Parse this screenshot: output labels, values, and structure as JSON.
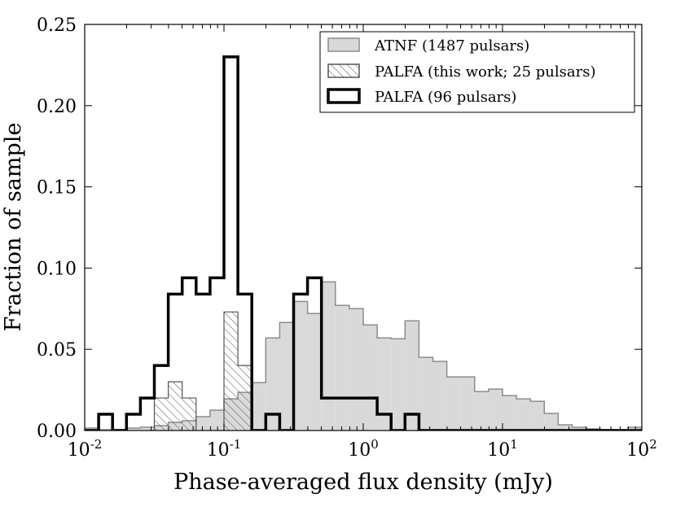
{
  "chart_data": {
    "type": "histogram",
    "xscale": "log",
    "xlim": [
      0.01,
      100
    ],
    "ylim": [
      0,
      0.25
    ],
    "xlabel": "Phase-averaged flux density (mJy)",
    "ylabel": "Fraction of sample",
    "legend_position": "top-right",
    "x_ticks": [
      {
        "base": "10",
        "exp": "-2",
        "value": 0.01
      },
      {
        "base": "10",
        "exp": "-1",
        "value": 0.1
      },
      {
        "base": "10",
        "exp": "0",
        "value": 1
      },
      {
        "base": "10",
        "exp": "1",
        "value": 10
      },
      {
        "base": "10",
        "exp": "2",
        "value": 100
      }
    ],
    "y_ticks": [
      {
        "label": "0.00",
        "value": 0.0
      },
      {
        "label": "0.05",
        "value": 0.05
      },
      {
        "label": "0.10",
        "value": 0.1
      },
      {
        "label": "0.15",
        "value": 0.15
      },
      {
        "label": "0.20",
        "value": 0.2
      },
      {
        "label": "0.25",
        "value": 0.25
      }
    ],
    "bin_edges_log10": [
      -2.0,
      -1.9,
      -1.8,
      -1.7,
      -1.6,
      -1.5,
      -1.4,
      -1.3,
      -1.2,
      -1.1,
      -1.0,
      -0.9,
      -0.8,
      -0.7,
      -0.6,
      -0.5,
      -0.4,
      -0.3,
      -0.2,
      -0.1,
      0.0,
      0.1,
      0.2,
      0.3,
      0.4,
      0.5,
      0.6,
      0.7,
      0.8,
      0.9,
      1.0,
      1.1,
      1.2,
      1.3,
      1.4,
      1.5,
      1.6,
      1.7,
      1.8,
      1.9,
      2.0
    ],
    "series": [
      {
        "name": "ATNF (1487 pulsars)",
        "style": "filled",
        "fill": "#d9d9d9",
        "stroke": "#8c8c8c",
        "values": [
          0.0015,
          0.0005,
          0.0005,
          0.0015,
          0.002,
          0.003,
          0.005,
          0.006,
          0.0085,
          0.0125,
          0.0195,
          0.0235,
          0.0295,
          0.057,
          0.0665,
          0.0795,
          0.072,
          0.0915,
          0.077,
          0.075,
          0.065,
          0.057,
          0.0565,
          0.0675,
          0.045,
          0.0425,
          0.033,
          0.033,
          0.024,
          0.0255,
          0.0215,
          0.0195,
          0.018,
          0.0105,
          0.0035,
          0.002,
          0.001,
          0.0005,
          0.0005,
          0.002
        ]
      },
      {
        "name": "PALFA (this work; 25 pulsars)",
        "style": "hatched",
        "stroke": "#555555",
        "values": [
          0,
          0,
          0,
          0,
          0,
          0.02,
          0.03,
          0.02,
          0.0,
          0.0,
          0.073,
          0.04,
          0,
          0,
          0,
          0,
          0,
          0,
          0,
          0,
          0,
          0,
          0,
          0,
          0,
          0,
          0,
          0,
          0,
          0,
          0,
          0,
          0,
          0,
          0,
          0,
          0,
          0,
          0,
          0
        ]
      },
      {
        "name": "PALFA (96 pulsars)",
        "style": "outline",
        "stroke": "#000000",
        "values": [
          0,
          0.01,
          0,
          0.01,
          0.02,
          0.04,
          0.084,
          0.094,
          0.084,
          0.094,
          0.23,
          0.084,
          0.0,
          0.01,
          0.0,
          0.084,
          0.094,
          0.02,
          0.02,
          0.02,
          0.02,
          0.01,
          0.0,
          0.01,
          0.0,
          0.0,
          0.0,
          0.0,
          0.0,
          0.0,
          0.0,
          0.0,
          0.0,
          0.0,
          0.0,
          0.0,
          0.0,
          0.0,
          0.0,
          0.0
        ]
      }
    ]
  }
}
